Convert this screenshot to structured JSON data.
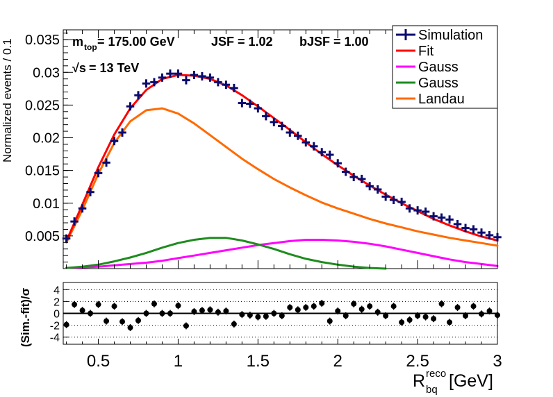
{
  "chart_data": [
    {
      "type": "scatter",
      "panel": "main",
      "ylabel": "Normalized events / 0.1",
      "xlim": [
        0.28,
        3.0
      ],
      "ylim": [
        0.0,
        0.0365
      ],
      "y_ticks": [
        0.005,
        0.01,
        0.015,
        0.02,
        0.025,
        0.03,
        0.035
      ],
      "y_tick_labels": [
        "0.005",
        "0.01",
        "0.015",
        "0.02",
        "0.025",
        "0.03",
        "0.035"
      ],
      "annotations": {
        "mtop_base": "m",
        "mtop_sub": "top",
        "mtop_value": " = 175.00 GeV",
        "jsf": "JSF = 1.02",
        "bjsf": "bJSF = 1.00",
        "sqrts_sym": "√s",
        "sqrts_value": " = 13 TeV"
      },
      "legend": {
        "placement": "top-right",
        "entries": [
          {
            "label": "Simulation",
            "color": "#0b0b6e",
            "style": "marker"
          },
          {
            "label": "Fit",
            "color": "#ff0000",
            "style": "line"
          },
          {
            "label": "Gauss",
            "color": "#ff00ff",
            "style": "line"
          },
          {
            "label": "Gauss",
            "color": "#1e8c1e",
            "style": "line"
          },
          {
            "label": "Landau",
            "color": "#ff6a00",
            "style": "line"
          }
        ]
      },
      "series": [
        {
          "name": "Simulation",
          "color": "#0b0b6e",
          "x": [
            0.3,
            0.35,
            0.4,
            0.45,
            0.5,
            0.55,
            0.6,
            0.65,
            0.7,
            0.75,
            0.8,
            0.85,
            0.9,
            0.95,
            1.0,
            1.05,
            1.1,
            1.15,
            1.2,
            1.25,
            1.3,
            1.35,
            1.4,
            1.45,
            1.5,
            1.55,
            1.6,
            1.65,
            1.7,
            1.75,
            1.8,
            1.85,
            1.9,
            1.95,
            2.0,
            2.05,
            2.1,
            2.15,
            2.2,
            2.25,
            2.3,
            2.35,
            2.4,
            2.45,
            2.5,
            2.55,
            2.6,
            2.65,
            2.7,
            2.75,
            2.8,
            2.85,
            2.9,
            2.95,
            3.0
          ],
          "y": [
            0.0046,
            0.0072,
            0.0092,
            0.0117,
            0.0146,
            0.0162,
            0.0195,
            0.0208,
            0.0248,
            0.0265,
            0.0283,
            0.0285,
            0.0292,
            0.0298,
            0.0298,
            0.0288,
            0.0296,
            0.0294,
            0.0292,
            0.0285,
            0.0281,
            0.0276,
            0.0253,
            0.0252,
            0.0245,
            0.0233,
            0.0224,
            0.0218,
            0.0208,
            0.0203,
            0.0193,
            0.0187,
            0.0178,
            0.0174,
            0.0161,
            0.0148,
            0.014,
            0.0137,
            0.0126,
            0.0121,
            0.011,
            0.0105,
            0.0102,
            0.0092,
            0.0089,
            0.0087,
            0.008,
            0.0078,
            0.0075,
            0.0068,
            0.0062,
            0.006,
            0.0055,
            0.0051,
            0.0048
          ]
        },
        {
          "name": "Fit",
          "color": "#ff0000",
          "x": [
            0.3,
            0.4,
            0.5,
            0.6,
            0.7,
            0.8,
            0.9,
            1.0,
            1.1,
            1.2,
            1.3,
            1.4,
            1.5,
            1.6,
            1.7,
            1.8,
            1.9,
            2.0,
            2.1,
            2.2,
            2.3,
            2.4,
            2.5,
            2.6,
            2.7,
            2.8,
            2.9,
            3.0
          ],
          "y": [
            0.0042,
            0.0098,
            0.0155,
            0.0205,
            0.0245,
            0.0273,
            0.029,
            0.0296,
            0.0295,
            0.029,
            0.028,
            0.0265,
            0.0248,
            0.023,
            0.0212,
            0.0193,
            0.0175,
            0.0158,
            0.0142,
            0.0127,
            0.0113,
            0.01,
            0.0088,
            0.0076,
            0.0066,
            0.0057,
            0.0049,
            0.0043
          ]
        },
        {
          "name": "Gauss",
          "color": "#ff00ff",
          "x": [
            0.3,
            0.4,
            0.5,
            0.6,
            0.7,
            0.8,
            0.9,
            1.0,
            1.1,
            1.2,
            1.3,
            1.4,
            1.5,
            1.6,
            1.7,
            1.8,
            1.9,
            2.0,
            2.1,
            2.2,
            2.3,
            2.4,
            2.5,
            2.6,
            2.7,
            2.8,
            2.9,
            3.0
          ],
          "y": [
            0.0001,
            0.0002,
            0.0003,
            0.0005,
            0.0007,
            0.0009,
            0.0012,
            0.0016,
            0.002,
            0.0024,
            0.0028,
            0.0032,
            0.0036,
            0.0039,
            0.0042,
            0.0044,
            0.0044,
            0.0043,
            0.0041,
            0.0038,
            0.0034,
            0.0029,
            0.0024,
            0.0019,
            0.0014,
            0.001,
            0.0007,
            0.0004
          ]
        },
        {
          "name": "Gauss",
          "color": "#1e8c1e",
          "x": [
            0.3,
            0.4,
            0.5,
            0.6,
            0.7,
            0.8,
            0.9,
            1.0,
            1.1,
            1.2,
            1.3,
            1.4,
            1.5,
            1.6,
            1.7,
            1.8,
            1.9,
            2.0,
            2.1,
            2.2,
            2.3
          ],
          "y": [
            0.0001,
            0.0003,
            0.0006,
            0.0011,
            0.0017,
            0.0024,
            0.0032,
            0.0039,
            0.0044,
            0.0047,
            0.0047,
            0.0043,
            0.0037,
            0.003,
            0.0022,
            0.0015,
            0.001,
            0.0006,
            0.0003,
            0.0001,
            0.0
          ]
        },
        {
          "name": "Landau",
          "color": "#ff6a00",
          "x": [
            0.3,
            0.4,
            0.5,
            0.6,
            0.7,
            0.8,
            0.9,
            1.0,
            1.1,
            1.2,
            1.3,
            1.4,
            1.5,
            1.6,
            1.7,
            1.8,
            1.9,
            2.0,
            2.1,
            2.2,
            2.3,
            2.4,
            2.5,
            2.6,
            2.7,
            2.8,
            2.9,
            3.0
          ],
          "y": [
            0.004,
            0.009,
            0.0145,
            0.0192,
            0.0225,
            0.0242,
            0.0245,
            0.0237,
            0.0222,
            0.0204,
            0.0186,
            0.0168,
            0.0152,
            0.0137,
            0.0124,
            0.0112,
            0.0101,
            0.0092,
            0.0084,
            0.0076,
            0.0069,
            0.0063,
            0.0057,
            0.0052,
            0.0047,
            0.0043,
            0.0039,
            0.0035
          ]
        }
      ]
    },
    {
      "type": "scatter",
      "panel": "residual",
      "ylabel": "(Sim.-fit)/σ",
      "xlabel_base": "R",
      "xlabel_sup": "reco",
      "xlabel_sub": "bq",
      "xlabel_unit": "[GeV]",
      "xlim": [
        0.28,
        3.0
      ],
      "ylim": [
        -5.2,
        5.2
      ],
      "y_ticks": [
        -4,
        -2,
        0,
        2,
        4
      ],
      "y_tick_labels": [
        "-4",
        "-2",
        "0",
        "2",
        "4"
      ],
      "x_ticks": [
        0.5,
        1,
        1.5,
        2,
        2.5,
        3
      ],
      "x_tick_labels": [
        "0.5",
        "1",
        "1.5",
        "2",
        "2.5",
        "3"
      ],
      "grid": "horizontal dotted",
      "series": [
        {
          "name": "",
          "color": "#000000",
          "x": [
            0.3,
            0.35,
            0.4,
            0.45,
            0.5,
            0.55,
            0.6,
            0.65,
            0.7,
            0.75,
            0.8,
            0.85,
            0.9,
            0.95,
            1.0,
            1.05,
            1.1,
            1.15,
            1.2,
            1.25,
            1.3,
            1.35,
            1.4,
            1.45,
            1.5,
            1.55,
            1.6,
            1.65,
            1.7,
            1.75,
            1.8,
            1.85,
            1.9,
            1.95,
            2.0,
            2.05,
            2.1,
            2.15,
            2.2,
            2.25,
            2.3,
            2.35,
            2.4,
            2.45,
            2.5,
            2.55,
            2.6,
            2.65,
            2.7,
            2.75,
            2.8,
            2.85,
            2.9,
            2.95,
            3.0
          ],
          "y": [
            -1.9,
            1.5,
            0.5,
            0.0,
            1.5,
            -1.3,
            1.2,
            -1.4,
            -2.4,
            -1.2,
            0.0,
            1.6,
            0.0,
            0.0,
            1.3,
            -2.1,
            0.3,
            0.5,
            0.6,
            0.2,
            0.4,
            -1.8,
            -0.2,
            -0.3,
            -0.6,
            -0.5,
            0.0,
            -0.4,
            1.0,
            0.6,
            1.0,
            1.2,
            1.7,
            -1.3,
            0.4,
            -0.4,
            1.6,
            0.7,
            1.2,
            0.2,
            -0.4,
            1.2,
            -1.5,
            -1.1,
            -0.4,
            -0.6,
            -0.9,
            1.6,
            -1.5,
            1.0,
            -0.4,
            1.2,
            -0.1,
            0.4,
            -0.3
          ]
        }
      ]
    }
  ]
}
